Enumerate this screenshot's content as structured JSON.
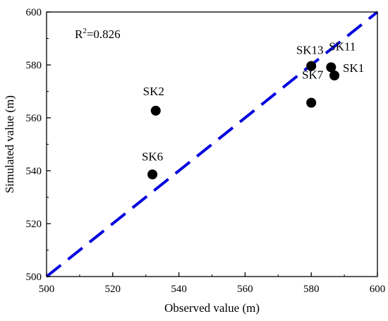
{
  "chart_data": {
    "type": "scatter",
    "xlabel": "Observed value (m)",
    "ylabel": "Simulated value (m)",
    "xlim": [
      500,
      600
    ],
    "ylim": [
      500,
      600
    ],
    "x_ticks": [
      500,
      520,
      540,
      560,
      580,
      600
    ],
    "y_ticks": [
      500,
      520,
      540,
      560,
      580,
      600
    ],
    "grid": false,
    "annotation": {
      "prefix": "R",
      "superscript": "2",
      "suffix": "=0.826"
    },
    "points": [
      {
        "label": "SK1",
        "x": 587.0,
        "y": 576.0
      },
      {
        "label": "SK2",
        "x": 533.0,
        "y": 562.7
      },
      {
        "label": "SK6",
        "x": 532.0,
        "y": 538.6
      },
      {
        "label": "SK7",
        "x": 580.0,
        "y": 565.7
      },
      {
        "label": "SK11",
        "x": 586.0,
        "y": 579.1
      },
      {
        "label": "SK13",
        "x": 580.0,
        "y": 579.6
      }
    ],
    "reference_line": {
      "style": "dashed",
      "x": [
        500,
        600
      ],
      "y": [
        500,
        600
      ],
      "color": "#0000dd"
    },
    "colors": {
      "points": "#000000",
      "reference_line": "#0000dd"
    }
  }
}
